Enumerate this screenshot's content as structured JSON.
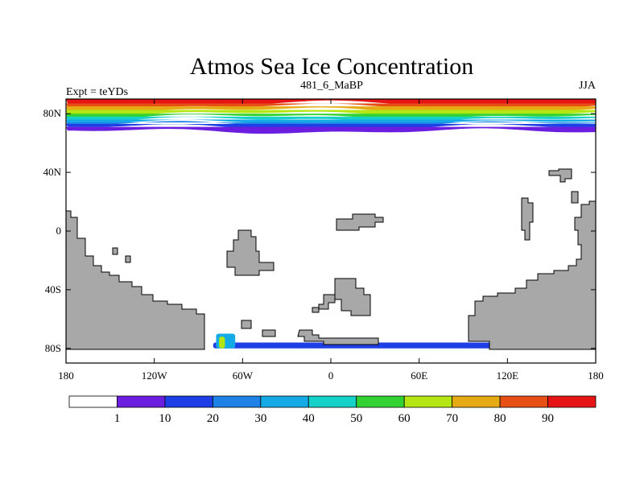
{
  "title": "Atmos Sea Ice Concentration",
  "subtitle_left": "Expt = teYDs",
  "subtitle_center": "481_6_MaBP",
  "subtitle_right": "JJA",
  "x_ticks": [
    "180",
    "120W",
    "60W",
    "0",
    "60E",
    "120E",
    "180"
  ],
  "x_tick_values": [
    -180,
    -120,
    -60,
    0,
    60,
    120,
    180
  ],
  "y_ticks": [
    "80N",
    "40N",
    "0",
    "40S",
    "80S"
  ],
  "y_tick_values": [
    80,
    40,
    0,
    -40,
    -80
  ],
  "lon_range": [
    -180,
    180
  ],
  "lat_range": [
    -90,
    90
  ],
  "land_color": "#a8a8a8",
  "colorbar": {
    "labels": [
      "1",
      "10",
      "20",
      "30",
      "40",
      "50",
      "60",
      "70",
      "80",
      "90"
    ],
    "colors": [
      "#ffffff",
      "#6b1ee0",
      "#1e3ee6",
      "#1e82e6",
      "#14aae6",
      "#14d2c8",
      "#32d232",
      "#b4e614",
      "#e6aa14",
      "#e65014",
      "#e61414"
    ]
  },
  "chart_data": {
    "type": "heatmap",
    "variable": "sea ice concentration",
    "units": "%",
    "levels": [
      1,
      10,
      20,
      30,
      40,
      50,
      60,
      70,
      80,
      90
    ],
    "arctic_ice_bands": [
      {
        "level": 90,
        "lat_min": 87,
        "lat_max": 90
      },
      {
        "level": 80,
        "lat_min": 85,
        "lat_max": 87
      },
      {
        "level": 70,
        "lat_min": 82.5,
        "lat_max": 85
      },
      {
        "level": 60,
        "lat_min": 80,
        "lat_max": 82.5
      },
      {
        "level": 50,
        "lat_min": 78,
        "lat_max": 80
      },
      {
        "level": 40,
        "lat_min": 76,
        "lat_max": 78
      },
      {
        "level": 30,
        "lat_min": 74,
        "lat_max": 76
      },
      {
        "level": 20,
        "lat_min": 73,
        "lat_max": 74
      },
      {
        "level": 10,
        "lat_min": 71,
        "lat_max": 73
      },
      {
        "level": 1,
        "lat_min": 68,
        "lat_max": 71
      }
    ],
    "antarctic_ice": [
      {
        "level": 10,
        "lon_range": [
          -80,
          110
        ],
        "lat_max": -76
      },
      {
        "level": 30,
        "lon_range": [
          -78,
          -65
        ],
        "lat_max": -70
      },
      {
        "level": 60,
        "lon_range": [
          -76,
          -72
        ],
        "lat_max": -72
      }
    ]
  }
}
